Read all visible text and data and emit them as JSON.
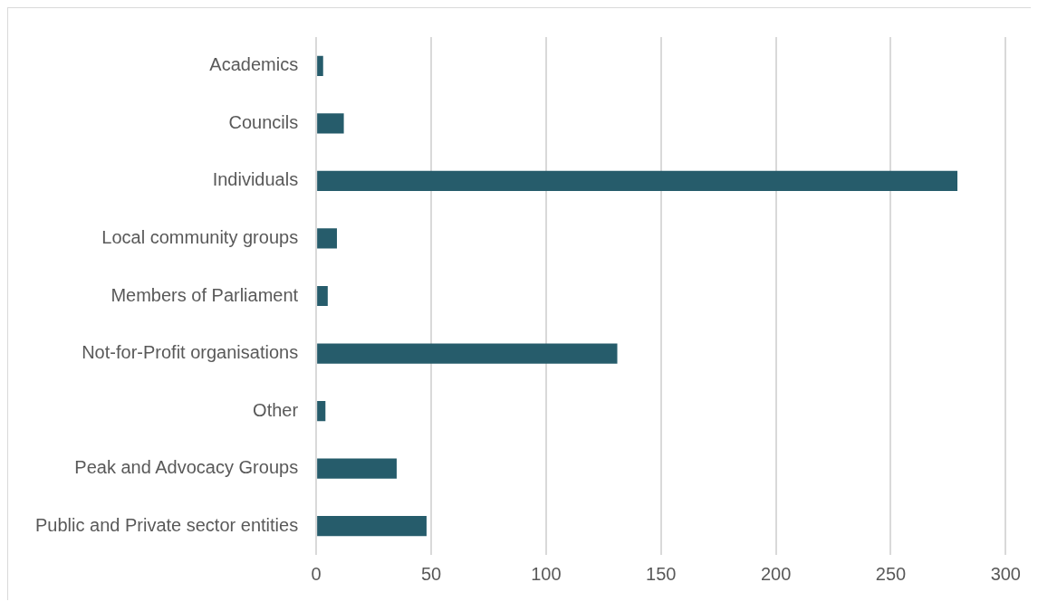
{
  "chart_data": {
    "type": "bar",
    "orientation": "horizontal",
    "categories": [
      "Academics",
      "Councils",
      "Individuals",
      "Local community groups",
      "Members of Parliament",
      "Not-for-Profit organisations",
      "Other",
      "Peak and Advocacy Groups",
      "Public and Private sector entities"
    ],
    "values": [
      3,
      12,
      279,
      9,
      5,
      131,
      4,
      35,
      48
    ],
    "color": "#265c6b",
    "xlim": [
      0,
      300
    ],
    "xticks": [
      0,
      50,
      100,
      150,
      200,
      250,
      300
    ],
    "grid": "x",
    "legend": false
  }
}
